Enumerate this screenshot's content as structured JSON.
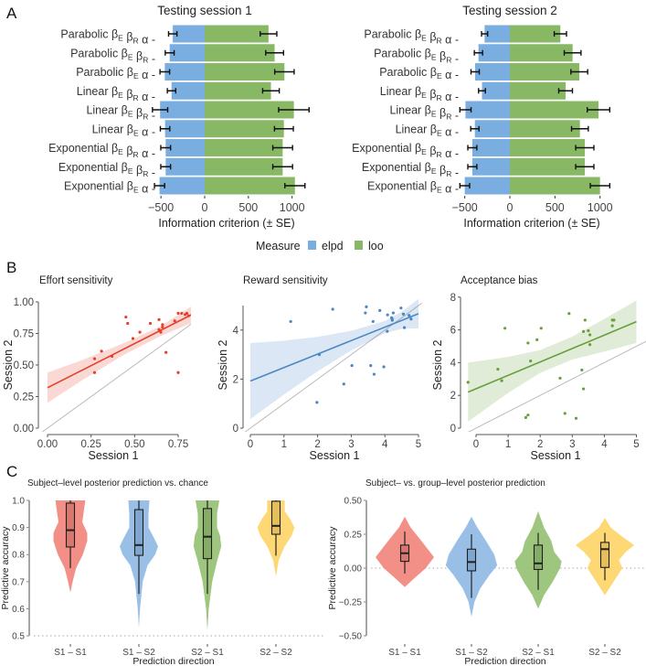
{
  "panel_labels": [
    "A",
    "B",
    "C"
  ],
  "legend": {
    "title": "Measure",
    "items": [
      {
        "label": "elpd",
        "color": "#7aaee0"
      },
      {
        "label": "loo",
        "color": "#89b865"
      }
    ]
  },
  "chart_data": [
    {
      "type": "bar",
      "orientation": "horizontal",
      "title": "Testing session 1",
      "xlabel": "Information criterion (± SE)",
      "xticks": [
        "-500",
        "0",
        "500",
        "1000"
      ],
      "xlim": [
        -550,
        1150
      ],
      "categories": [
        {
          "model": "Parabolic",
          "params": [
            [
              "β",
              "E"
            ],
            [
              "β",
              "R"
            ],
            [
              "α",
              ""
            ]
          ]
        },
        {
          "model": "Parabolic",
          "params": [
            [
              "β",
              "E"
            ],
            [
              "β",
              "R"
            ]
          ]
        },
        {
          "model": "Parabolic",
          "params": [
            [
              "β",
              "E"
            ],
            [
              "α",
              ""
            ]
          ]
        },
        {
          "model": "Linear",
          "params": [
            [
              "β",
              "E"
            ],
            [
              "β",
              "R"
            ],
            [
              "α",
              ""
            ]
          ]
        },
        {
          "model": "Linear",
          "params": [
            [
              "β",
              "E"
            ],
            [
              "β",
              "R"
            ]
          ]
        },
        {
          "model": "Linear",
          "params": [
            [
              "β",
              "E"
            ],
            [
              "α",
              ""
            ]
          ]
        },
        {
          "model": "Exponential",
          "params": [
            [
              "β",
              "E"
            ],
            [
              "β",
              "R"
            ],
            [
              "α",
              ""
            ]
          ]
        },
        {
          "model": "Exponential",
          "params": [
            [
              "β",
              "E"
            ],
            [
              "β",
              "R"
            ]
          ]
        },
        {
          "model": "Exponential",
          "params": [
            [
              "β",
              "E"
            ],
            [
              "α",
              ""
            ]
          ]
        }
      ],
      "series": [
        {
          "name": "elpd",
          "values": [
            -365,
            -400,
            -456,
            -379,
            -510,
            -453,
            -446,
            -446,
            -516
          ],
          "se": [
            48,
            51,
            55,
            48,
            87,
            54,
            56,
            56,
            58
          ]
        },
        {
          "name": "loo",
          "values": [
            730,
            800,
            912,
            758,
            1020,
            906,
            892,
            892,
            1032
          ],
          "se": [
            95,
            102,
            111,
            95,
            174,
            108,
            113,
            113,
            115
          ]
        }
      ]
    },
    {
      "type": "bar",
      "orientation": "horizontal",
      "title": "Testing session 2",
      "xlabel": "Information criterion (± SE)",
      "xticks": [
        "-500",
        "0",
        "500",
        "1000"
      ],
      "xlim": [
        -550,
        1150
      ],
      "categories": "same as session 1",
      "series": [
        {
          "name": "elpd",
          "values": [
            -280,
            -348,
            -385,
            -309,
            -492,
            -388,
            -416,
            -416,
            -500
          ],
          "se": [
            34,
            46,
            46,
            38,
            62,
            46,
            50,
            50,
            54
          ]
        },
        {
          "name": "loo",
          "values": [
            560,
            696,
            770,
            618,
            983,
            777,
            831,
            831,
            1000
          ],
          "se": [
            68,
            93,
            93,
            76,
            125,
            93,
            101,
            101,
            108
          ]
        }
      ]
    },
    {
      "type": "scatter",
      "title": "Effort sensitivity",
      "xlabel": "Session 1",
      "ylabel": "Session 2",
      "xticks": [
        "0.00",
        "0.25",
        "0.50",
        "0.75"
      ],
      "xtick_values": [
        0,
        0.25,
        0.5,
        0.75
      ],
      "yticks": [
        "0.00",
        "0.25",
        "0.50",
        "0.75",
        "1.00"
      ],
      "ytick_values": [
        0,
        0.25,
        0.5,
        0.75,
        1.0
      ],
      "color": "#e5402c",
      "points": [
        [
          0.27,
          0.55
        ],
        [
          0.27,
          0.44
        ],
        [
          0.31,
          0.61
        ],
        [
          0.37,
          0.57
        ],
        [
          0.45,
          0.88
        ],
        [
          0.46,
          0.83
        ],
        [
          0.49,
          0.71
        ],
        [
          0.53,
          0.76
        ],
        [
          0.59,
          0.83
        ],
        [
          0.64,
          0.86
        ],
        [
          0.64,
          0.78
        ],
        [
          0.65,
          0.76
        ],
        [
          0.66,
          0.8
        ],
        [
          0.66,
          0.82
        ],
        [
          0.68,
          0.6
        ],
        [
          0.73,
          0.85
        ],
        [
          0.75,
          0.44
        ],
        [
          0.75,
          0.91
        ],
        [
          0.77,
          0.91
        ],
        [
          0.79,
          0.9
        ],
        [
          0.8,
          0.91
        ],
        [
          0.81,
          0.89
        ],
        [
          0.83,
          0.9
        ],
        [
          0.85,
          0.9
        ],
        [
          0.88,
          0.91
        ]
      ],
      "fit": {
        "x": [
          0,
          0.9
        ],
        "y": [
          0.32,
          0.95
        ]
      },
      "band": {
        "x": [
          0,
          0.2,
          0.45,
          0.65,
          0.9
        ],
        "lower": [
          0.2,
          0.38,
          0.59,
          0.73,
          0.875
        ],
        "upper": [
          0.44,
          0.54,
          0.68,
          0.81,
          1.03
        ]
      },
      "identity_line": true
    },
    {
      "type": "scatter",
      "title": "Reward sensitivity",
      "xlabel": "Session 1",
      "ylabel": "Session 2",
      "xticks": [
        "0",
        "1",
        "2",
        "3",
        "4",
        "5"
      ],
      "xtick_values": [
        0,
        1,
        2,
        3,
        4,
        5
      ],
      "yticks": [
        "0",
        "2",
        "4"
      ],
      "ytick_values": [
        0,
        2,
        4
      ],
      "color": "#4a87c6",
      "points": [
        [
          1.2,
          4.35
        ],
        [
          1.98,
          1.05
        ],
        [
          2.05,
          3.0
        ],
        [
          2.45,
          4.85
        ],
        [
          2.78,
          1.8
        ],
        [
          3.02,
          2.55
        ],
        [
          3.45,
          4.95
        ],
        [
          3.42,
          4.7
        ],
        [
          3.58,
          2.55
        ],
        [
          3.65,
          4.35
        ],
        [
          3.68,
          2.2
        ],
        [
          3.85,
          4.8
        ],
        [
          3.97,
          2.5
        ],
        [
          4.07,
          3.95
        ],
        [
          4.08,
          4.62
        ],
        [
          4.2,
          4.5
        ],
        [
          4.22,
          4.4
        ],
        [
          4.25,
          4.7
        ],
        [
          4.48,
          4.9
        ],
        [
          4.58,
          4.1
        ],
        [
          4.55,
          4.65
        ],
        [
          4.72,
          4.6
        ],
        [
          4.78,
          4.45
        ],
        [
          4.22,
          4.45
        ]
      ],
      "fit": {
        "x": [
          0,
          5
        ],
        "y": [
          1.92,
          4.67
        ]
      },
      "band": {
        "x": [
          0,
          1,
          2,
          3,
          4,
          4.5,
          5
        ],
        "lower": [
          0.37,
          1.37,
          2.32,
          3.17,
          3.87,
          4.05,
          4.07
        ],
        "upper": [
          3.47,
          3.57,
          3.72,
          3.97,
          4.37,
          4.75,
          5.27
        ]
      },
      "identity_line": true
    },
    {
      "type": "scatter",
      "title": "Acceptance bias",
      "xlabel": "Session 1",
      "ylabel": "Session 2",
      "xticks": [
        "0",
        "1",
        "2",
        "3",
        "4",
        "5"
      ],
      "xtick_values": [
        0,
        1,
        2,
        3,
        4,
        5
      ],
      "yticks": [
        "0",
        "2",
        "4",
        "6",
        "8"
      ],
      "ytick_values": [
        0,
        2,
        4,
        6,
        8
      ],
      "color": "#67a03a",
      "points": [
        [
          -0.25,
          2.8
        ],
        [
          0.68,
          3.6
        ],
        [
          0.8,
          2.9
        ],
        [
          0.9,
          6.1
        ],
        [
          1.55,
          0.65
        ],
        [
          1.62,
          0.8
        ],
        [
          1.62,
          5.2
        ],
        [
          1.7,
          4.1
        ],
        [
          1.9,
          5.4
        ],
        [
          2.03,
          6.1
        ],
        [
          2.62,
          3.05
        ],
        [
          2.77,
          0.9
        ],
        [
          2.9,
          7.0
        ],
        [
          3.12,
          0.6
        ],
        [
          3.3,
          3.55
        ],
        [
          3.35,
          2.4
        ],
        [
          3.35,
          5.9
        ],
        [
          3.4,
          6.6
        ],
        [
          3.5,
          5.95
        ],
        [
          3.55,
          5.7
        ],
        [
          3.55,
          5.1
        ],
        [
          4.25,
          6.6
        ],
        [
          4.25,
          6.25
        ],
        [
          4.3,
          6.6
        ]
      ],
      "fit": {
        "x": [
          -0.25,
          5
        ],
        "y": [
          2.2,
          6.5
        ]
      },
      "band": {
        "x": [
          -0.25,
          1,
          2,
          3,
          4,
          5
        ],
        "lower": [
          0.4,
          2.15,
          3.37,
          4.19,
          4.67,
          5.2
        ],
        "upper": [
          4.0,
          4.35,
          4.77,
          5.59,
          6.67,
          7.8
        ]
      },
      "identity_line": true
    },
    {
      "type": "violin",
      "title": "Subject–level posterior prediction vs. chance",
      "xlabel": "Prediction direction",
      "ylabel": "Predictive accuracy",
      "yticks": [
        "0.5",
        "0.6",
        "0.7",
        "0.8",
        "0.9",
        "1.0"
      ],
      "ytick_values": [
        0.5,
        0.6,
        0.7,
        0.8,
        0.9,
        1.0
      ],
      "ylim": [
        0.5,
        1.0
      ],
      "reference_line": 0.5,
      "categories": [
        "S1 – S1",
        "S1 – S2",
        "S2 – S1",
        "S2 – S2"
      ],
      "colors": [
        "#f1847a",
        "#8eb8e4",
        "#95c070",
        "#fdd466"
      ],
      "boxes": [
        {
          "whisker_low": 0.75,
          "q1": 0.828,
          "median": 0.89,
          "q3": 0.99,
          "whisker_high": 1.0
        },
        {
          "whisker_low": 0.655,
          "q1": 0.797,
          "median": 0.835,
          "q3": 0.966,
          "whisker_high": 1.0
        },
        {
          "whisker_low": 0.655,
          "q1": 0.785,
          "median": 0.866,
          "q3": 0.97,
          "whisker_high": 1.0
        },
        {
          "whisker_low": 0.796,
          "q1": 0.875,
          "median": 0.906,
          "q3": 0.997,
          "whisker_high": 1.0
        }
      ],
      "density": [
        {
          "y": [
            0.66,
            0.7,
            0.75,
            0.8,
            0.85,
            0.88,
            0.92,
            0.95,
            1.0
          ],
          "w": [
            0,
            0.12,
            0.3,
            0.65,
            0.88,
            0.88,
            0.62,
            0.68,
            0.78
          ]
        },
        {
          "y": [
            0.53,
            0.6,
            0.7,
            0.76,
            0.8,
            0.83,
            0.86,
            0.9,
            0.95,
            1.0
          ],
          "w": [
            0,
            0.06,
            0.2,
            0.45,
            0.85,
            1.0,
            0.8,
            0.5,
            0.5,
            0.55
          ]
        },
        {
          "y": [
            0.52,
            0.6,
            0.7,
            0.78,
            0.83,
            0.87,
            0.9,
            0.95,
            1.0
          ],
          "w": [
            0,
            0.07,
            0.25,
            0.52,
            0.72,
            0.66,
            0.5,
            0.5,
            0.62
          ]
        },
        {
          "y": [
            0.72,
            0.78,
            0.83,
            0.87,
            0.9,
            0.93,
            0.96,
            1.0
          ],
          "w": [
            0,
            0.15,
            0.45,
            0.82,
            0.97,
            0.75,
            0.46,
            0.46
          ]
        }
      ]
    },
    {
      "type": "violin",
      "title": "Subject– vs. group–level posterior prediction",
      "xlabel": "Prediction direction",
      "ylabel": "Predictive accuracy",
      "yticks": [
        "-0.50",
        "-0.25",
        "0.00",
        "0.25",
        "0.50"
      ],
      "ytick_values": [
        -0.5,
        -0.25,
        0,
        0.25,
        0.5
      ],
      "ylim": [
        -0.5,
        0.5
      ],
      "reference_line": 0,
      "categories": [
        "S1 – S1",
        "S1 – S2",
        "S2 – S1",
        "S2 – S2"
      ],
      "colors": [
        "#f1847a",
        "#8eb8e4",
        "#95c070",
        "#fdd466"
      ],
      "boxes": [
        {
          "whisker_low": -0.04,
          "q1": 0.05,
          "median": 0.11,
          "q3": 0.17,
          "whisker_high": 0.27
        },
        {
          "whisker_low": -0.22,
          "q1": -0.02,
          "median": 0.045,
          "q3": 0.14,
          "whisker_high": 0.25
        },
        {
          "whisker_low": -0.16,
          "q1": -0.01,
          "median": 0.035,
          "q3": 0.17,
          "whisker_high": 0.26
        },
        {
          "whisker_low": -0.09,
          "q1": 0.005,
          "median": 0.14,
          "q3": 0.19,
          "whisker_high": 0.26
        }
      ],
      "density": [
        {
          "y": [
            -0.14,
            -0.08,
            0,
            0.08,
            0.15,
            0.22,
            0.3,
            0.38
          ],
          "w": [
            0,
            0.3,
            0.72,
            1.0,
            0.75,
            0.5,
            0.2,
            0
          ]
        },
        {
          "y": [
            -0.36,
            -0.25,
            -0.15,
            -0.05,
            0.02,
            0.1,
            0.2,
            0.3,
            0.38
          ],
          "w": [
            0,
            0.1,
            0.3,
            0.62,
            0.88,
            0.78,
            0.5,
            0.2,
            0
          ]
        },
        {
          "y": [
            -0.3,
            -0.2,
            -0.1,
            0,
            0.05,
            0.12,
            0.2,
            0.3,
            0.42
          ],
          "w": [
            0,
            0.2,
            0.5,
            0.75,
            0.8,
            0.55,
            0.45,
            0.2,
            0
          ]
        },
        {
          "y": [
            -0.2,
            -0.1,
            0,
            0.06,
            0.12,
            0.17,
            0.24,
            0.3,
            0.37
          ],
          "w": [
            0,
            0.3,
            0.6,
            0.48,
            0.72,
            1.0,
            0.55,
            0.2,
            0
          ]
        }
      ]
    }
  ]
}
